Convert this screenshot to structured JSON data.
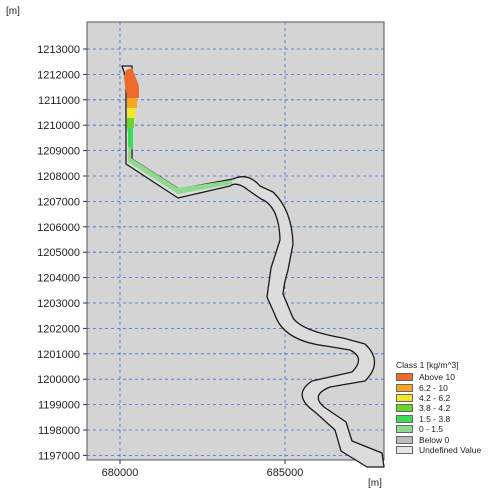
{
  "axes": {
    "y_unit": "[m]",
    "x_unit": "[m]",
    "y_ticks": [
      "1213000",
      "1212000",
      "1211000",
      "1210000",
      "1209000",
      "1208000",
      "1207000",
      "1206000",
      "1205000",
      "1204000",
      "1203000",
      "1202000",
      "1201000",
      "1200000",
      "1199000",
      "1198000",
      "1197000"
    ],
    "x_ticks": [
      "680000",
      "685000"
    ]
  },
  "colors": {
    "plot_background": "#d4d4d4",
    "gridline": "#3b6fd8",
    "channel_outline": "#1a1a1a",
    "channel_fill": "#dcdcdc"
  },
  "legend": {
    "title": "Class 1 [kg/m^3]",
    "items": [
      {
        "label": "Above  10",
        "color": "#ee6a2c"
      },
      {
        "label": "6.2 -  10",
        "color": "#f6a623"
      },
      {
        "label": "4.2 -  6.2",
        "color": "#f2e82a"
      },
      {
        "label": "3.8 -  4.2",
        "color": "#6ad62a"
      },
      {
        "label": "1.5 -  3.8",
        "color": "#3ddc5a"
      },
      {
        "label": "0 -  1.5",
        "color": "#8fd98f"
      },
      {
        "label": "Below   0",
        "color": "#bcbcbc"
      },
      {
        "label": "Undefined Value",
        "color": "#e6e6e6"
      }
    ]
  }
}
